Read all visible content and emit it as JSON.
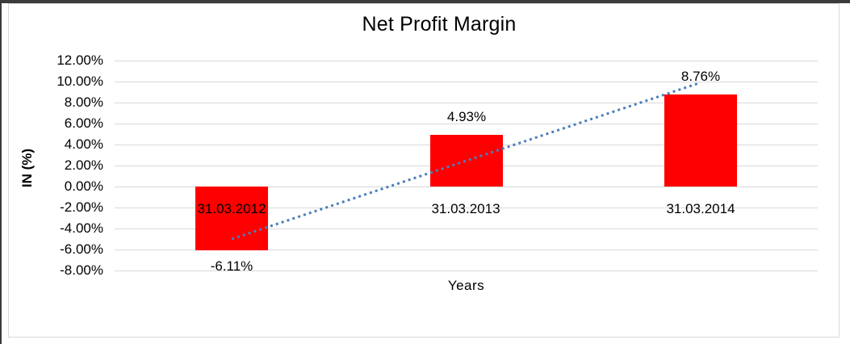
{
  "window": {
    "background": "#ffffff",
    "outer_border_color": "#3b3b3b",
    "chart_frame_border_color": "#d9d9d9"
  },
  "chart_data": {
    "type": "bar",
    "title": "Net Profit Margin",
    "xlabel": "Years",
    "ylabel": "IN (%)",
    "categories": [
      "31.03.2012",
      "31.03.2013",
      "31.03.2014"
    ],
    "values": [
      -6.11,
      4.93,
      8.76
    ],
    "data_labels": [
      "-6.11%",
      "4.93%",
      "8.76%"
    ],
    "ylim": [
      -8,
      12
    ],
    "ytick_step": 2,
    "ytick_labels": [
      "12.00%",
      "10.00%",
      "8.00%",
      "6.00%",
      "4.00%",
      "2.00%",
      "0.00%",
      "-2.00%",
      "-4.00%",
      "-6.00%",
      "-8.00%"
    ],
    "grid": true,
    "legend": "none",
    "bar_color": "#ff0000",
    "gridline_color": "#d9d9d9",
    "trendline": {
      "type": "linear",
      "style": "dotted",
      "color": "#4a7ebb",
      "start": {
        "category_index": 0,
        "value": -5.0
      },
      "end": {
        "category_index": 2,
        "value": 9.9
      }
    }
  }
}
